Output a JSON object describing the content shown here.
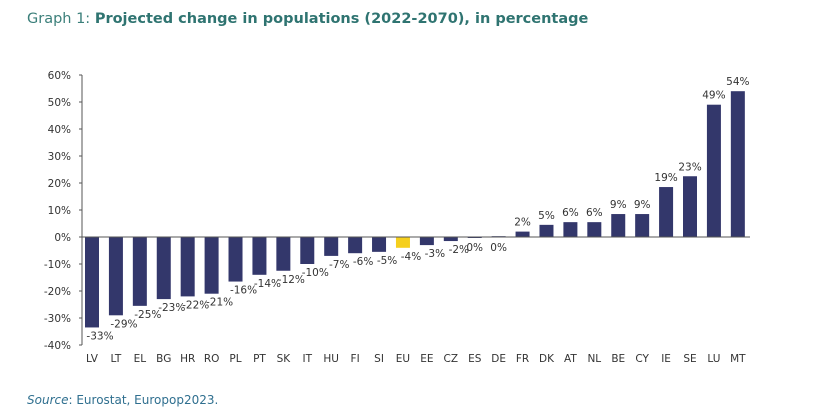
{
  "chart_data": {
    "type": "bar",
    "title_prefix": "Graph 1:",
    "title": "Projected change in populations (2022-2070), in percentage",
    "xlabel": "",
    "ylabel": "",
    "ylim": [
      -40,
      60
    ],
    "yticks": [
      -40,
      -30,
      -20,
      -10,
      0,
      10,
      20,
      30,
      40,
      50,
      60
    ],
    "ytick_labels": [
      "-40%",
      "-30%",
      "-20%",
      "-10%",
      "0%",
      "10%",
      "20%",
      "30%",
      "40%",
      "50%",
      "60%"
    ],
    "grid": false,
    "legend": "none",
    "categories": [
      "LV",
      "LT",
      "EL",
      "BG",
      "HR",
      "RO",
      "PL",
      "PT",
      "SK",
      "IT",
      "HU",
      "FI",
      "SI",
      "EU",
      "EE",
      "CZ",
      "ES",
      "DE",
      "FR",
      "DK",
      "AT",
      "NL",
      "BE",
      "CY",
      "IE",
      "SE",
      "LU",
      "MT"
    ],
    "values": [
      -33.5,
      -29,
      -25.5,
      -23,
      -22,
      -21,
      -16.5,
      -14,
      -12.5,
      -10,
      -7,
      -6,
      -5.5,
      -4,
      -3,
      -1.5,
      0,
      0.3,
      2,
      4.5,
      5.5,
      5.5,
      8.5,
      8.5,
      18.5,
      22.5,
      49,
      54
    ],
    "data_labels": [
      "-33%",
      "-29%",
      "-25%",
      "-23%",
      "-22%",
      "-21%",
      "-16%",
      "-14%",
      "-12%",
      "-10%",
      "-7%",
      "-6%",
      "-5%",
      "-4%",
      "-3%",
      "-2%",
      "0%",
      "0%",
      "2%",
      "5%",
      "6%",
      "6%",
      "9%",
      "9%",
      "19%",
      "23%",
      "49%",
      "54%"
    ],
    "highlight": "EU",
    "colors": {
      "bar": "#33376b",
      "highlight": "#f5cf1d",
      "axis": "#555555"
    }
  },
  "source": {
    "label": "Source",
    "text": ": Eurostat, Europop2023."
  }
}
